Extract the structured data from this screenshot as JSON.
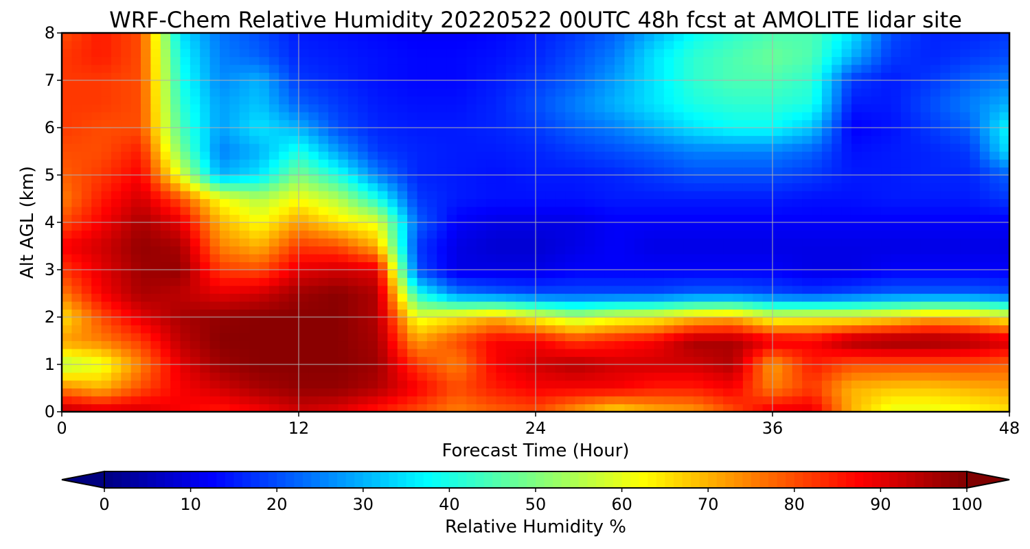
{
  "chart_data": {
    "type": "heatmap",
    "title": "WRF-Chem Relative Humidity 20220522 00UTC 48h fcst at AMOLITE lidar site",
    "xlabel": "Forecast Time (Hour)",
    "ylabel": "Alt AGL (km)",
    "xlim": [
      0,
      48
    ],
    "ylim": [
      0,
      8
    ],
    "xticks": [
      0,
      12,
      24,
      36,
      48
    ],
    "yticks": [
      0,
      1,
      2,
      3,
      4,
      5,
      6,
      7,
      8
    ],
    "grid": true,
    "colormap": "jet",
    "colorbar": {
      "label": "Relative Humidity %",
      "ticks": [
        0,
        10,
        20,
        30,
        40,
        50,
        60,
        70,
        80,
        90,
        100
      ],
      "range": [
        0,
        100
      ],
      "extend": "both",
      "orientation": "horizontal"
    },
    "x": [
      0,
      2,
      4,
      6,
      8,
      10,
      12,
      14,
      16,
      18,
      20,
      22,
      24,
      26,
      28,
      30,
      32,
      34,
      36,
      38,
      40,
      42,
      44,
      46,
      48
    ],
    "y": [
      0,
      0.5,
      1,
      1.5,
      2,
      2.5,
      3,
      3.5,
      4,
      4.5,
      5,
      5.5,
      6,
      6.5,
      7,
      7.5,
      8
    ],
    "z": [
      [
        95,
        92,
        92,
        88,
        85,
        88,
        92,
        90,
        85,
        80,
        75,
        78,
        80,
        72,
        65,
        70,
        72,
        80,
        90,
        90,
        70,
        60,
        60,
        62,
        65
      ],
      [
        75,
        70,
        80,
        88,
        92,
        96,
        98,
        98,
        95,
        88,
        80,
        85,
        88,
        88,
        88,
        85,
        85,
        88,
        75,
        82,
        70,
        68,
        68,
        70,
        72
      ],
      [
        55,
        60,
        75,
        90,
        97,
        99,
        99,
        99,
        97,
        82,
        75,
        88,
        92,
        95,
        92,
        92,
        92,
        95,
        72,
        85,
        80,
        80,
        80,
        80,
        78
      ],
      [
        72,
        75,
        82,
        94,
        99,
        99,
        99,
        99,
        96,
        72,
        80,
        88,
        88,
        82,
        85,
        88,
        96,
        96,
        90,
        88,
        96,
        98,
        98,
        96,
        92
      ],
      [
        65,
        80,
        90,
        96,
        98,
        99,
        99,
        99,
        95,
        60,
        65,
        70,
        62,
        55,
        60,
        62,
        68,
        70,
        60,
        62,
        62,
        65,
        70,
        68,
        62
      ],
      [
        75,
        88,
        96,
        94,
        90,
        92,
        97,
        99,
        95,
        40,
        25,
        22,
        20,
        20,
        20,
        20,
        22,
        22,
        20,
        18,
        20,
        22,
        22,
        22,
        20
      ],
      [
        82,
        90,
        97,
        98,
        82,
        80,
        90,
        92,
        90,
        20,
        10,
        10,
        10,
        12,
        12,
        12,
        12,
        12,
        12,
        10,
        10,
        12,
        12,
        12,
        12
      ],
      [
        88,
        92,
        98,
        96,
        75,
        70,
        82,
        80,
        70,
        18,
        10,
        8,
        8,
        10,
        12,
        10,
        10,
        10,
        10,
        10,
        10,
        10,
        10,
        10,
        10
      ],
      [
        80,
        88,
        96,
        90,
        70,
        62,
        72,
        65,
        60,
        22,
        12,
        10,
        10,
        10,
        12,
        12,
        12,
        12,
        12,
        12,
        12,
        12,
        12,
        12,
        12
      ],
      [
        75,
        85,
        92,
        80,
        62,
        55,
        62,
        55,
        40,
        18,
        15,
        14,
        14,
        14,
        15,
        15,
        15,
        15,
        15,
        14,
        14,
        15,
        15,
        15,
        18
      ],
      [
        78,
        82,
        88,
        60,
        30,
        35,
        50,
        40,
        25,
        16,
        15,
        14,
        15,
        15,
        16,
        18,
        20,
        20,
        20,
        18,
        15,
        15,
        16,
        16,
        22
      ],
      [
        80,
        80,
        85,
        50,
        25,
        30,
        40,
        28,
        18,
        16,
        15,
        15,
        16,
        18,
        20,
        22,
        25,
        25,
        25,
        22,
        14,
        15,
        16,
        18,
        35
      ],
      [
        82,
        80,
        80,
        45,
        28,
        35,
        30,
        20,
        16,
        15,
        15,
        16,
        18,
        22,
        25,
        30,
        35,
        38,
        38,
        32,
        12,
        14,
        18,
        22,
        38
      ],
      [
        82,
        82,
        80,
        42,
        28,
        32,
        22,
        18,
        15,
        14,
        14,
        16,
        20,
        25,
        30,
        35,
        40,
        42,
        42,
        40,
        15,
        15,
        20,
        25,
        30
      ],
      [
        82,
        82,
        80,
        40,
        26,
        30,
        18,
        16,
        14,
        13,
        13,
        15,
        18,
        22,
        28,
        35,
        42,
        45,
        45,
        42,
        18,
        15,
        18,
        22,
        25
      ],
      [
        82,
        85,
        80,
        38,
        25,
        22,
        16,
        15,
        14,
        13,
        13,
        14,
        16,
        20,
        25,
        35,
        42,
        45,
        48,
        45,
        30,
        18,
        16,
        18,
        20
      ],
      [
        80,
        85,
        80,
        35,
        24,
        20,
        15,
        14,
        13,
        12,
        12,
        13,
        15,
        18,
        22,
        30,
        38,
        42,
        45,
        45,
        35,
        20,
        16,
        16,
        18
      ]
    ]
  }
}
